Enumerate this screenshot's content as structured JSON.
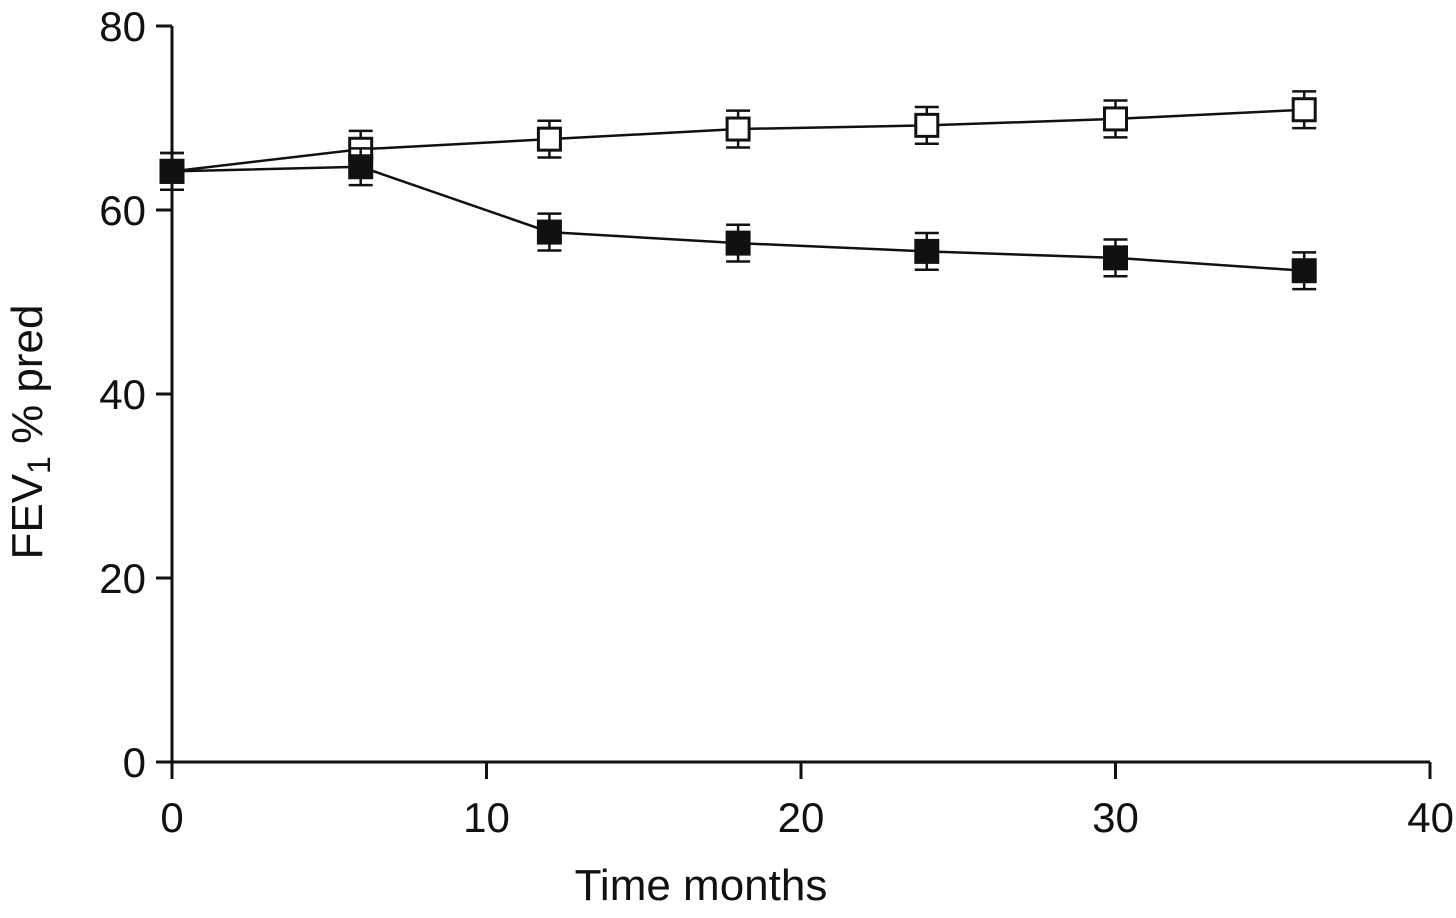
{
  "chart_data": {
    "type": "line",
    "title": "",
    "xlabel": "Time months",
    "ylabel": {
      "main": "FEV",
      "subscript": "1",
      "suffix": " % pred"
    },
    "xlim": [
      0,
      40
    ],
    "ylim": [
      0,
      80
    ],
    "xticks": [
      0,
      10,
      20,
      30,
      40
    ],
    "yticks": [
      0,
      20,
      40,
      60,
      80
    ],
    "grid": false,
    "legend": "none",
    "x": [
      0,
      6,
      12,
      18,
      24,
      30,
      36
    ],
    "series": [
      {
        "marker": "open-square",
        "color": "#111111",
        "values": [
          64.2,
          66.6,
          67.7,
          68.8,
          69.2,
          69.9,
          70.9
        ],
        "error": [
          2.0,
          2.0,
          2.0,
          2.0,
          2.0,
          2.0,
          2.0
        ]
      },
      {
        "marker": "filled-square",
        "color": "#111111",
        "values": [
          64.2,
          64.7,
          57.6,
          56.4,
          55.5,
          54.8,
          53.4
        ],
        "error": [
          2.0,
          2.0,
          2.0,
          2.0,
          2.0,
          2.0,
          2.0
        ]
      }
    ]
  }
}
